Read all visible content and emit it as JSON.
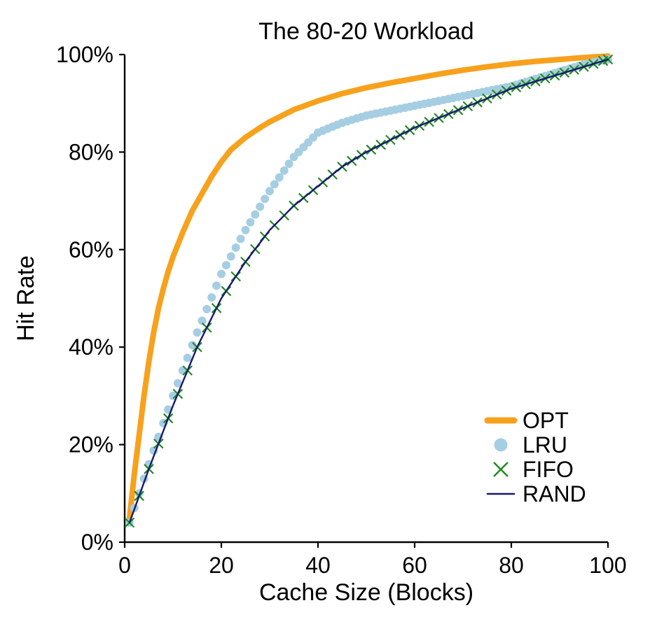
{
  "chart_data": {
    "type": "line",
    "title": "The 80-20 Workload",
    "xlabel": "Cache Size (Blocks)",
    "ylabel": "Hit Rate",
    "xlim": [
      0,
      100
    ],
    "ylim": [
      0,
      100
    ],
    "xticks": [
      0,
      20,
      40,
      60,
      80,
      100
    ],
    "xtick_labels": [
      "0",
      "20",
      "40",
      "60",
      "80",
      "100"
    ],
    "yticks": [
      0,
      20,
      40,
      60,
      80,
      100
    ],
    "ytick_labels": [
      "0%",
      "20%",
      "40%",
      "60%",
      "80%",
      "100%"
    ],
    "grid": false,
    "legend_position": "lower right",
    "background": "#ffffff",
    "axis_color": "#000000",
    "series": [
      {
        "name": "OPT",
        "style": "line",
        "color": "#F7A11C",
        "line_width": 8,
        "points": [
          [
            1,
            5
          ],
          [
            2,
            14
          ],
          [
            3,
            22
          ],
          [
            4,
            30
          ],
          [
            5,
            37
          ],
          [
            6,
            43
          ],
          [
            7,
            48
          ],
          [
            8,
            52
          ],
          [
            9,
            55.5
          ],
          [
            10,
            58.5
          ],
          [
            12,
            63.5
          ],
          [
            14,
            68
          ],
          [
            16,
            71.5
          ],
          [
            18,
            75
          ],
          [
            20,
            78
          ],
          [
            22,
            80.5
          ],
          [
            25,
            83
          ],
          [
            28,
            85
          ],
          [
            30,
            86.2
          ],
          [
            35,
            88.7
          ],
          [
            40,
            90.5
          ],
          [
            45,
            92
          ],
          [
            50,
            93.2
          ],
          [
            55,
            94.2
          ],
          [
            60,
            95.1
          ],
          [
            65,
            96
          ],
          [
            70,
            96.8
          ],
          [
            75,
            97.5
          ],
          [
            80,
            98.1
          ],
          [
            85,
            98.6
          ],
          [
            90,
            99
          ],
          [
            95,
            99.4
          ],
          [
            100,
            99.7
          ]
        ]
      },
      {
        "name": "LRU",
        "style": "markers",
        "marker": "circle",
        "marker_size": 6,
        "color": "#A6CEE3",
        "x_start": 1,
        "x_step": 1,
        "y": [
          4,
          7,
          10,
          13,
          16,
          18.8,
          21.6,
          24.4,
          27.2,
          30,
          32.6,
          35.2,
          37.8,
          40.4,
          43,
          45.4,
          47.8,
          50.2,
          52.6,
          55,
          56.8,
          58.6,
          60.4,
          62.2,
          64,
          65.6,
          67.2,
          68.8,
          70.4,
          72,
          73.4,
          74.8,
          76.2,
          77.6,
          79,
          80,
          81,
          82,
          83,
          84,
          84.4,
          84.8,
          85.2,
          85.6,
          86,
          86.3,
          86.6,
          86.9,
          87.2,
          87.5,
          87.7,
          87.9,
          88.1,
          88.3,
          88.5,
          88.7,
          88.9,
          89.1,
          89.3,
          89.5,
          89.7,
          89.9,
          90.1,
          90.3,
          90.5,
          90.7,
          90.9,
          91.1,
          91.3,
          91.5,
          91.7,
          91.9,
          92.1,
          92.3,
          92.5,
          92.7,
          92.9,
          93.1,
          93.3,
          93.5,
          93.8,
          94.1,
          94.4,
          94.7,
          95,
          95.3,
          95.6,
          95.9,
          96.2,
          96.5,
          96.8,
          97.1,
          97.4,
          97.7,
          98,
          98.2,
          98.4,
          98.6,
          98.8,
          99
        ]
      },
      {
        "name": "FIFO",
        "style": "markers",
        "marker": "x",
        "marker_size": 6.5,
        "color": "#228B22",
        "points": [
          [
            1,
            4
          ],
          [
            3,
            9.5
          ],
          [
            5,
            15
          ],
          [
            7,
            20.2
          ],
          [
            9,
            25.4
          ],
          [
            11,
            30.4
          ],
          [
            13,
            35.2
          ],
          [
            15,
            40
          ],
          [
            17,
            44
          ],
          [
            19,
            48
          ],
          [
            21,
            51.5
          ],
          [
            23,
            54.5
          ],
          [
            25,
            57.5
          ],
          [
            27,
            60.1
          ],
          [
            29,
            62.7
          ],
          [
            31,
            65
          ],
          [
            33,
            67
          ],
          [
            35,
            69
          ],
          [
            37,
            70.6
          ],
          [
            39,
            72.2
          ],
          [
            41,
            73.8
          ],
          [
            43,
            75.4
          ],
          [
            45,
            77
          ],
          [
            47,
            78.2
          ],
          [
            49,
            79.4
          ],
          [
            51,
            80.5
          ],
          [
            53,
            81.5
          ],
          [
            55,
            82.5
          ],
          [
            57,
            83.5
          ],
          [
            59,
            84.5
          ],
          [
            61,
            85.4
          ],
          [
            63,
            86.2
          ],
          [
            65,
            87
          ],
          [
            67,
            87.8
          ],
          [
            69,
            88.6
          ],
          [
            71,
            89.4
          ],
          [
            73,
            90.2
          ],
          [
            75,
            91
          ],
          [
            77,
            91.8
          ],
          [
            79,
            92.6
          ],
          [
            81,
            93.3
          ],
          [
            83,
            93.9
          ],
          [
            85,
            94.5
          ],
          [
            87,
            95.1
          ],
          [
            89,
            95.7
          ],
          [
            91,
            96.3
          ],
          [
            93,
            96.9
          ],
          [
            95,
            97.5
          ],
          [
            97,
            98.1
          ],
          [
            99,
            98.7
          ],
          [
            100,
            99
          ]
        ]
      },
      {
        "name": "RAND",
        "style": "line",
        "color": "#191970",
        "line_width": 2.4,
        "points": [
          [
            1,
            4
          ],
          [
            5,
            15
          ],
          [
            10,
            28
          ],
          [
            15,
            40
          ],
          [
            20,
            50
          ],
          [
            25,
            57.5
          ],
          [
            30,
            64
          ],
          [
            35,
            69
          ],
          [
            40,
            73
          ],
          [
            45,
            77
          ],
          [
            50,
            80
          ],
          [
            55,
            82.5
          ],
          [
            60,
            85
          ],
          [
            65,
            87
          ],
          [
            70,
            89
          ],
          [
            75,
            91
          ],
          [
            80,
            93
          ],
          [
            85,
            94.5
          ],
          [
            90,
            96
          ],
          [
            95,
            97.5
          ],
          [
            100,
            99
          ]
        ]
      }
    ],
    "legend": [
      "OPT",
      "LRU",
      "FIFO",
      "RAND"
    ]
  }
}
